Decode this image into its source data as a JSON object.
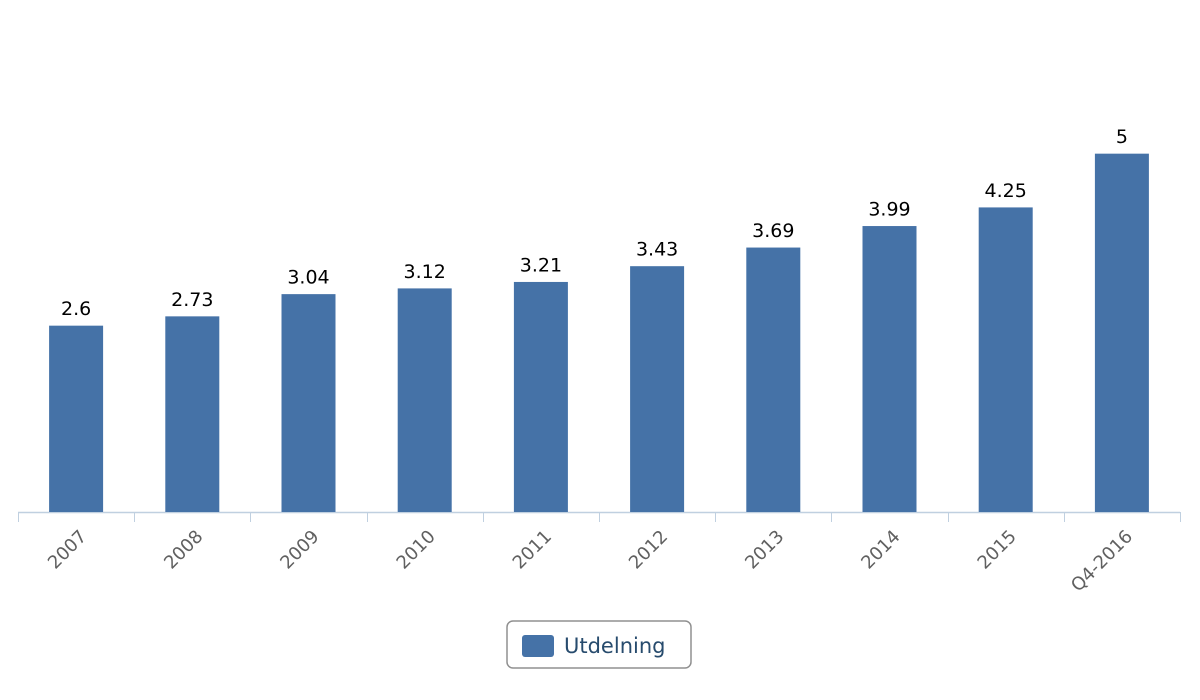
{
  "chart_data": {
    "type": "bar",
    "categories": [
      "2007",
      "2008",
      "2009",
      "2010",
      "2011",
      "2012",
      "2013",
      "2014",
      "2015",
      "Q4-2016"
    ],
    "series": [
      {
        "name": "Utdelning",
        "color": "#4572a7",
        "values": [
          2.6,
          2.73,
          3.04,
          3.12,
          3.21,
          3.43,
          3.69,
          3.99,
          4.25,
          5
        ]
      }
    ],
    "ylim": [
      0,
      6
    ]
  }
}
